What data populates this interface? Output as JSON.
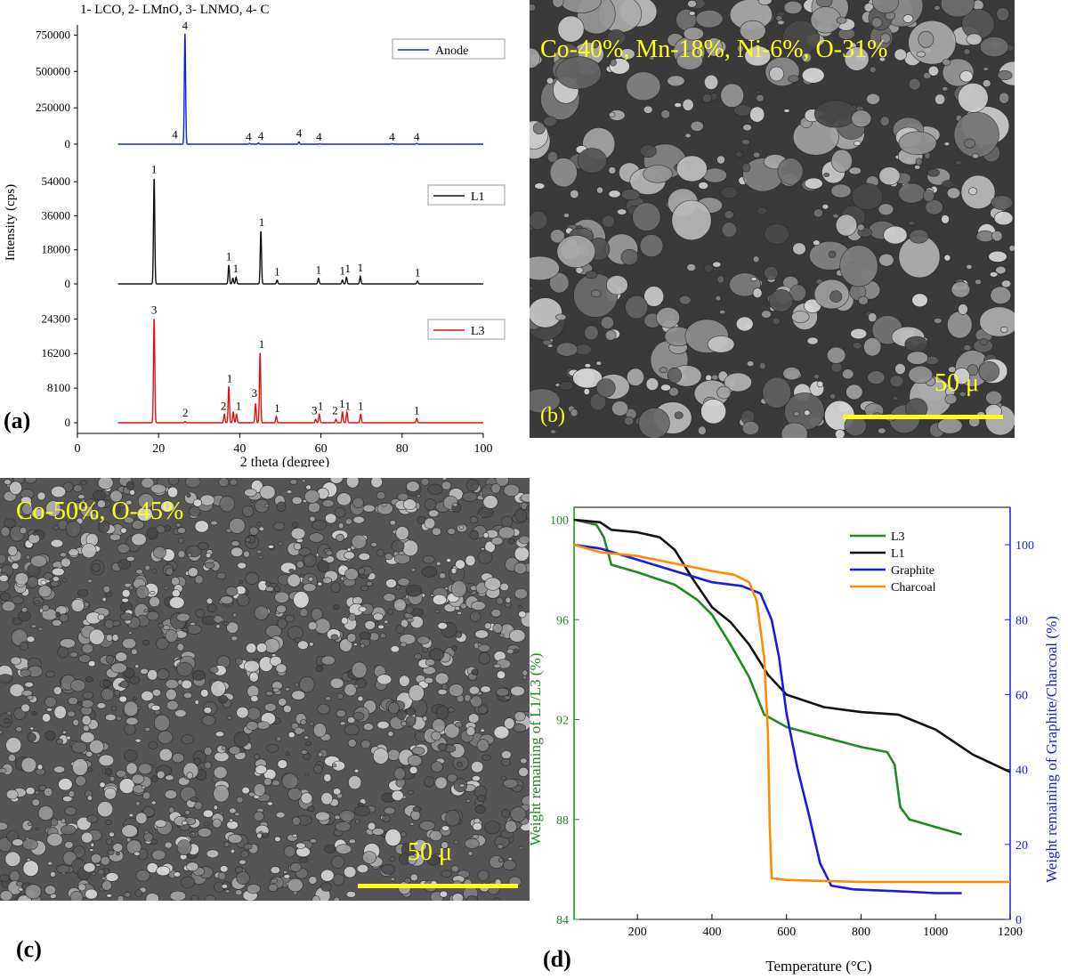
{
  "panels": {
    "a": {
      "letter": "(a)"
    },
    "b": {
      "letter": "(b)",
      "composition": "Co-40%, Mn-18%, Ni-6%, O-31%",
      "scale_bar": "50 μ"
    },
    "c": {
      "letter": "(c)",
      "composition": "Co-50%,  O-45%",
      "scale_bar": "50 μ"
    },
    "d": {
      "letter": "(d)"
    }
  },
  "colors": {
    "anode": "#1a1ae0",
    "l1": "#111111",
    "l3": "#e01010",
    "tga_l3": "#1f8a1f",
    "tga_l1": "#111111",
    "graphite": "#1a1ae0",
    "charcoal": "#ff8c00",
    "yellow_text": "#ffff1a"
  },
  "chart_data": [
    {
      "type": "line",
      "subtitle": "1- LCO, 2- LMnO, 3- LNMO, 4- C",
      "xlabel": "2 theta (degree)",
      "ylabel": "Intensity (cps)",
      "xlim": [
        0,
        100
      ],
      "xticks": [
        "0",
        "20",
        "40",
        "60",
        "80",
        "100"
      ],
      "series": [
        {
          "name": "Anode",
          "ylim": [
            0,
            820000
          ],
          "yticks": [
            "0",
            "250000",
            "500000",
            "750000"
          ],
          "baseline": 0,
          "peaks": [
            [
              26.5,
              760000
            ],
            [
              42.4,
              6000
            ],
            [
              44.6,
              9000
            ],
            [
              54.6,
              15000
            ],
            [
              59.8,
              3000
            ],
            [
              77.5,
              4000
            ],
            [
              83.6,
              5000
            ]
          ],
          "peak_labels": [
            {
              "x": 24.0,
              "y": 40000,
              "label": "4"
            },
            {
              "x": 26.5,
              "y": 790000,
              "label": "4"
            },
            {
              "x": 42.2,
              "y": 25000,
              "label": "4"
            },
            {
              "x": 45.2,
              "y": 30000,
              "label": "4"
            },
            {
              "x": 54.6,
              "y": 50000,
              "label": "4"
            },
            {
              "x": 59.5,
              "y": 25000,
              "label": "4"
            },
            {
              "x": 77.5,
              "y": 25000,
              "label": "4"
            },
            {
              "x": 83.6,
              "y": 25000,
              "label": "4"
            }
          ]
        },
        {
          "name": "L1",
          "ylim": [
            0,
            63000
          ],
          "yticks": [
            "0",
            "18000",
            "36000",
            "54000"
          ],
          "baseline": 0,
          "peaks": [
            [
              18.9,
              56000
            ],
            [
              37.3,
              10000
            ],
            [
              38.3,
              3000
            ],
            [
              39.1,
              3500
            ],
            [
              45.2,
              28000
            ],
            [
              49.2,
              2000
            ],
            [
              59.4,
              3000
            ],
            [
              65.3,
              2000
            ],
            [
              66.3,
              3500
            ],
            [
              69.7,
              4000
            ],
            [
              83.8,
              1500
            ]
          ],
          "peak_labels": [
            {
              "x": 18.9,
              "y": 58500,
              "label": "1"
            },
            {
              "x": 37.3,
              "y": 12500,
              "label": "1"
            },
            {
              "x": 39.0,
              "y": 6000,
              "label": "1"
            },
            {
              "x": 45.4,
              "y": 30500,
              "label": "1"
            },
            {
              "x": 49.2,
              "y": 4500,
              "label": "1"
            },
            {
              "x": 59.4,
              "y": 5500,
              "label": "1"
            },
            {
              "x": 65.3,
              "y": 5000,
              "label": "1"
            },
            {
              "x": 66.6,
              "y": 6000,
              "label": "1"
            },
            {
              "x": 69.7,
              "y": 6500,
              "label": "1"
            },
            {
              "x": 83.8,
              "y": 4000,
              "label": "1"
            }
          ]
        },
        {
          "name": "L3",
          "ylim": [
            0,
            27500
          ],
          "yticks": [
            "0",
            "8100",
            "16200",
            "24300"
          ],
          "baseline": 0,
          "peaks": [
            [
              18.9,
              24500
            ],
            [
              26.5,
              300
            ],
            [
              36.2,
              2000
            ],
            [
              37.3,
              8500
            ],
            [
              38.4,
              2500
            ],
            [
              39.2,
              2000
            ],
            [
              43.9,
              4500
            ],
            [
              45.0,
              16500
            ],
            [
              49.0,
              1500
            ],
            [
              58.7,
              800
            ],
            [
              59.6,
              2000
            ],
            [
              63.7,
              800
            ],
            [
              65.3,
              2500
            ],
            [
              66.4,
              2500
            ],
            [
              69.8,
              2000
            ],
            [
              83.6,
              1000
            ]
          ],
          "peak_labels": [
            {
              "x": 18.9,
              "y": 25500,
              "label": "3"
            },
            {
              "x": 26.6,
              "y": 1500,
              "label": "2"
            },
            {
              "x": 36.0,
              "y": 3000,
              "label": "2"
            },
            {
              "x": 37.5,
              "y": 9500,
              "label": "1"
            },
            {
              "x": 39.7,
              "y": 3000,
              "label": "1"
            },
            {
              "x": 43.6,
              "y": 6000,
              "label": "3"
            },
            {
              "x": 45.4,
              "y": 17500,
              "label": "1"
            },
            {
              "x": 49.2,
              "y": 2500,
              "label": "1"
            },
            {
              "x": 58.4,
              "y": 2000,
              "label": "3"
            },
            {
              "x": 59.9,
              "y": 3000,
              "label": "1"
            },
            {
              "x": 63.5,
              "y": 2000,
              "label": "2"
            },
            {
              "x": 65.2,
              "y": 3500,
              "label": "1"
            },
            {
              "x": 66.6,
              "y": 3000,
              "label": "1"
            },
            {
              "x": 69.8,
              "y": 3000,
              "label": "1"
            },
            {
              "x": 83.6,
              "y": 2000,
              "label": "1"
            }
          ]
        }
      ]
    },
    {
      "type": "line",
      "xlabel": "Temperature (°C)",
      "ylabel": "Weight remaining of L1/L3 (%)",
      "y2label": "Weight remaining of Graphite/Charcoal (%)",
      "xlim": [
        30,
        1200
      ],
      "ylim": [
        84,
        100.5
      ],
      "y2lim": [
        0,
        110
      ],
      "xticks": [
        "200",
        "400",
        "600",
        "800",
        "1000",
        "1200"
      ],
      "yticks": [
        "84",
        "88",
        "92",
        "96",
        "100"
      ],
      "y2ticks": [
        "0",
        "20",
        "40",
        "60",
        "80",
        "100"
      ],
      "legend_position": "top-right",
      "series": [
        {
          "name": "L3",
          "axis": "left",
          "points": [
            [
              30,
              100
            ],
            [
              90,
              99.8
            ],
            [
              110,
              99.3
            ],
            [
              130,
              98.2
            ],
            [
              200,
              97.9
            ],
            [
              300,
              97.4
            ],
            [
              360,
              96.8
            ],
            [
              400,
              96.2
            ],
            [
              450,
              95.0
            ],
            [
              500,
              93.7
            ],
            [
              540,
              92.2
            ],
            [
              600,
              91.7
            ],
            [
              700,
              91.3
            ],
            [
              800,
              90.9
            ],
            [
              870,
              90.7
            ],
            [
              890,
              90.2
            ],
            [
              905,
              88.5
            ],
            [
              930,
              88.0
            ],
            [
              1000,
              87.7
            ],
            [
              1070,
              87.4
            ]
          ]
        },
        {
          "name": "L1",
          "axis": "left",
          "points": [
            [
              30,
              100
            ],
            [
              100,
              99.9
            ],
            [
              130,
              99.6
            ],
            [
              200,
              99.5
            ],
            [
              260,
              99.3
            ],
            [
              300,
              98.8
            ],
            [
              350,
              97.6
            ],
            [
              400,
              96.5
            ],
            [
              450,
              95.9
            ],
            [
              500,
              95.0
            ],
            [
              550,
              93.8
            ],
            [
              600,
              93.0
            ],
            [
              700,
              92.5
            ],
            [
              800,
              92.3
            ],
            [
              900,
              92.2
            ],
            [
              1000,
              91.6
            ],
            [
              1100,
              90.6
            ],
            [
              1200,
              89.9
            ]
          ]
        },
        {
          "name": "Graphite",
          "axis": "right",
          "points": [
            [
              30,
              100
            ],
            [
              100,
              99
            ],
            [
              200,
              96
            ],
            [
              300,
              93
            ],
            [
              400,
              90
            ],
            [
              480,
              89
            ],
            [
              530,
              87
            ],
            [
              560,
              80
            ],
            [
              580,
              70
            ],
            [
              600,
              55
            ],
            [
              630,
              40
            ],
            [
              660,
              28
            ],
            [
              690,
              15
            ],
            [
              720,
              9
            ],
            [
              780,
              8
            ],
            [
              900,
              7.5
            ],
            [
              1000,
              7
            ],
            [
              1070,
              7
            ]
          ]
        },
        {
          "name": "Charcoal",
          "axis": "right",
          "points": [
            [
              30,
              100
            ],
            [
              100,
              98
            ],
            [
              200,
              97
            ],
            [
              300,
              95
            ],
            [
              400,
              93
            ],
            [
              460,
              92
            ],
            [
              500,
              90
            ],
            [
              520,
              85
            ],
            [
              540,
              70
            ],
            [
              550,
              50
            ],
            [
              555,
              25
            ],
            [
              560,
              11
            ],
            [
              600,
              10.5
            ],
            [
              800,
              10
            ],
            [
              1000,
              10
            ],
            [
              1200,
              10
            ]
          ]
        }
      ]
    }
  ]
}
